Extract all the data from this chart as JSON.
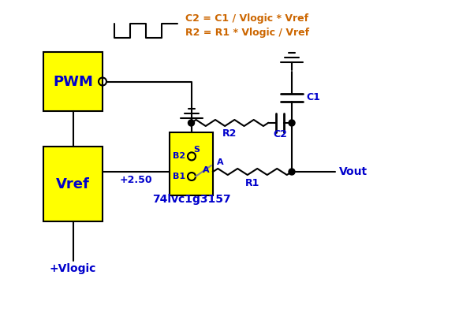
{
  "bg_color": "#ffffff",
  "yellow": "#FFFF00",
  "black": "#000000",
  "blue": "#0000CC",
  "orange": "#CC6600",
  "figsize": [
    5.82,
    3.96
  ],
  "dpi": 100,
  "formula1": "R2 = R1 * Vlogic / Vref",
  "formula2": "C2 = C1 / Vlogic * Vref",
  "vlogic_label": "+Vlogic",
  "vref_val": "+2.50",
  "mux_label": "74lvc1g3157",
  "vout_label": "Vout",
  "r1_label": "R1",
  "r2_label": "R2",
  "c1_label": "C1",
  "c2_label": "C2",
  "b1_label": "B1",
  "b2_label": "B2",
  "s_label": "S",
  "a_label": "A",
  "vref_label": "Vref",
  "pwm_label": "PWM"
}
